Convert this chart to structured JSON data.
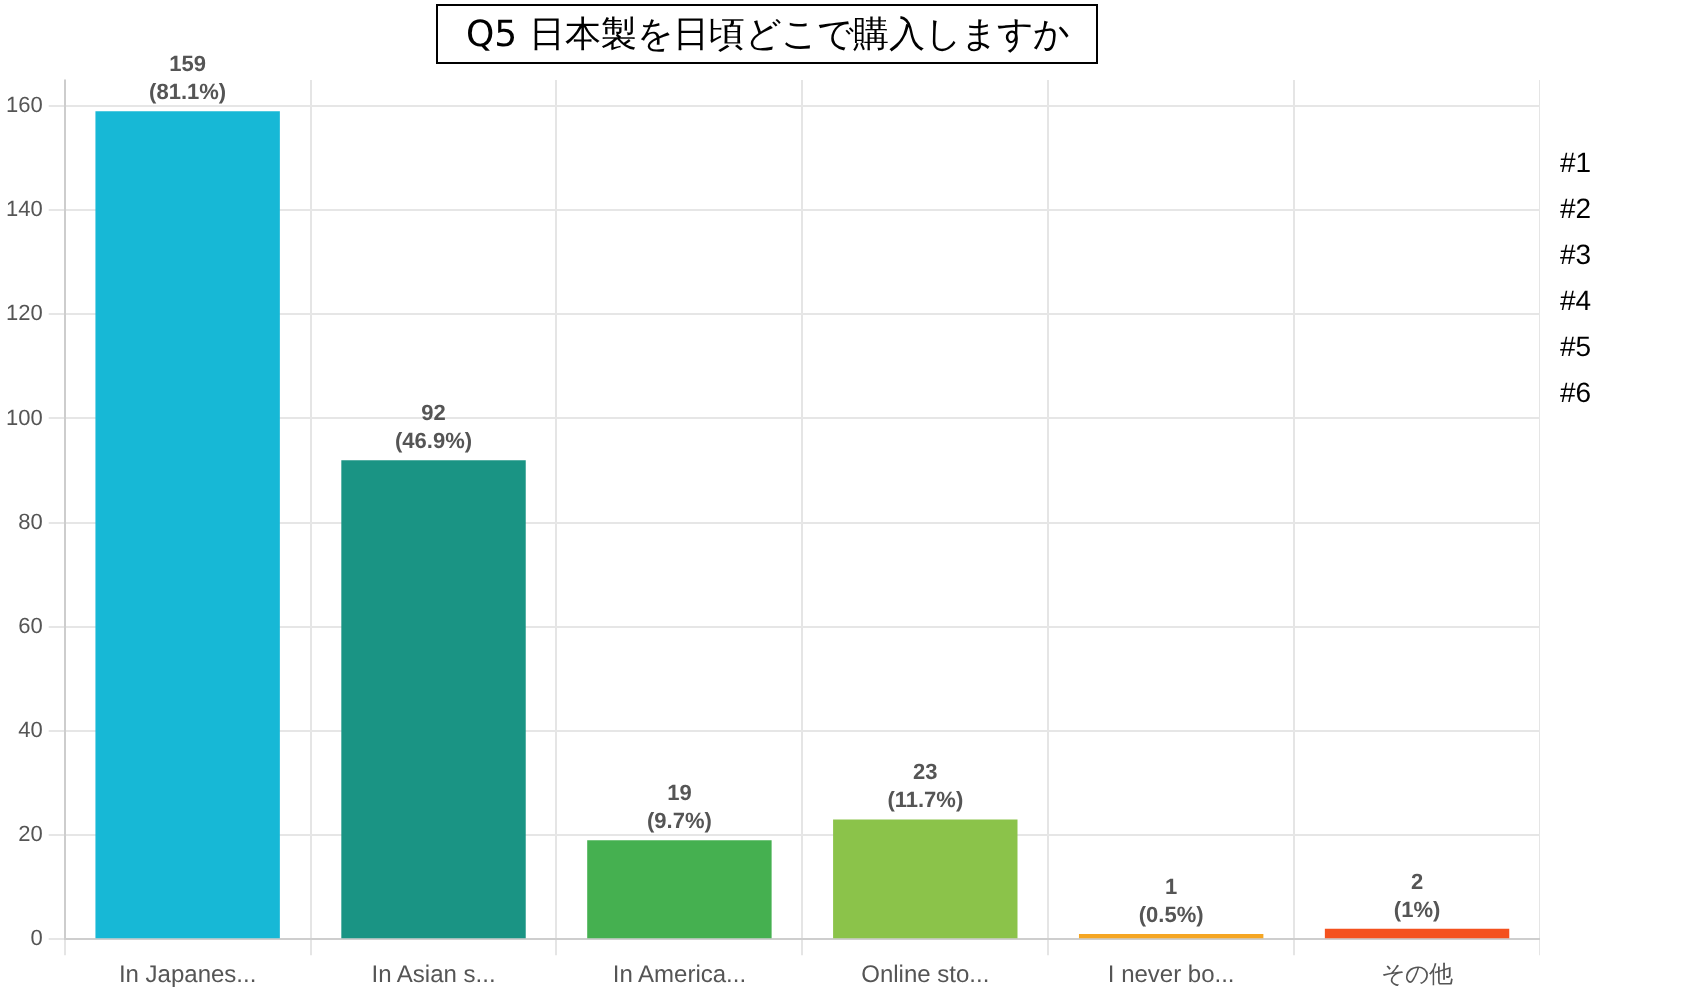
{
  "chart_data": {
    "type": "bar",
    "title": "Q5 日本製を日頃どこで購入しますか",
    "categories": [
      "In Japanes...",
      "In Asian s...",
      "In America...",
      "Online sto...",
      "I never bo...",
      "その他"
    ],
    "values": [
      159,
      92,
      19,
      23,
      1,
      2
    ],
    "colors": [
      "#17b8d6",
      "#1a9484",
      "#45b050",
      "#8bc34a",
      "#f5a623",
      "#f4511e"
    ],
    "value_labels": [
      "159\n(81.1%)",
      "92\n(46.9%)",
      "19\n(9.7%)",
      "23\n(11.7%)",
      "1\n(0.5%)",
      "2\n(1%)"
    ],
    "ylim": [
      0,
      165
    ],
    "yticks": [
      0,
      20,
      40,
      60,
      80,
      100,
      120,
      140,
      160
    ],
    "grid": true,
    "annotations": [
      "#1",
      "#2",
      "#3",
      "#4",
      "#5",
      "#6"
    ]
  }
}
